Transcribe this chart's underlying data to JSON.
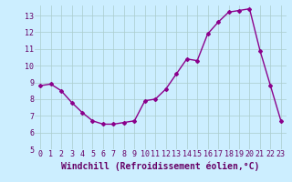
{
  "x": [
    0,
    1,
    2,
    3,
    4,
    5,
    6,
    7,
    8,
    9,
    10,
    11,
    12,
    13,
    14,
    15,
    16,
    17,
    18,
    19,
    20,
    21,
    22,
    23
  ],
  "y": [
    8.8,
    8.9,
    8.5,
    7.8,
    7.2,
    6.7,
    6.5,
    6.5,
    6.6,
    6.7,
    7.9,
    8.0,
    8.6,
    9.5,
    10.4,
    10.3,
    11.9,
    12.6,
    13.2,
    13.3,
    13.4,
    10.9,
    8.8,
    6.7
  ],
  "line_color": "#8B008B",
  "marker": "D",
  "marker_size": 2,
  "bg_color": "#cceeff",
  "grid_color": "#aacccc",
  "xlabel": "Windchill (Refroidissement éolien,°C)",
  "xlabel_fontsize": 7,
  "xlim": [
    -0.5,
    23.5
  ],
  "ylim": [
    5,
    13.6
  ],
  "yticks": [
    5,
    6,
    7,
    8,
    9,
    10,
    11,
    12,
    13
  ],
  "xticks": [
    0,
    1,
    2,
    3,
    4,
    5,
    6,
    7,
    8,
    9,
    10,
    11,
    12,
    13,
    14,
    15,
    16,
    17,
    18,
    19,
    20,
    21,
    22,
    23
  ],
  "tick_color": "#660066",
  "tick_fontsize": 6,
  "line_width": 1.0
}
